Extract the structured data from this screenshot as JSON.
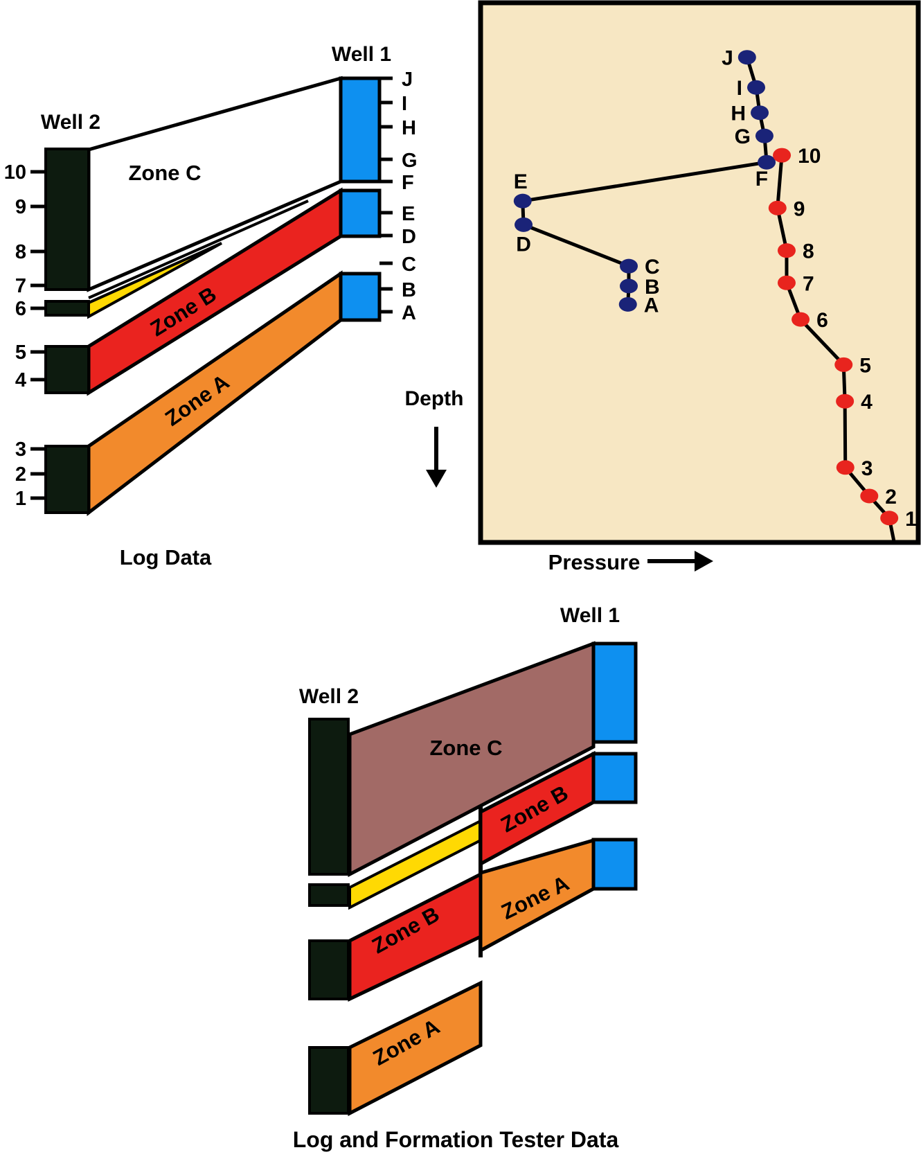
{
  "colors": {
    "plot_background": "#F7E7C3",
    "well1_blue": "#0E90F0",
    "well2_black": "#0D1B0F",
    "zone_a_orange": "#F28A2C",
    "zone_b_red": "#EA231F",
    "zone_c_white": "#FFFFFF",
    "zone_c_mauve": "#A26A66",
    "thin_bed_yellow": "#FFD903",
    "navy_point": "#1A2378",
    "red_point": "#E8241E",
    "ink": "#000000"
  },
  "log_data_panel": {
    "caption": "Log Data",
    "well1": {
      "label": "Well 1",
      "ticks": [
        "J",
        "I",
        "H",
        "G",
        "F",
        "E",
        "D",
        "C",
        "B",
        "A"
      ]
    },
    "well2": {
      "label": "Well 2",
      "ticks": [
        "10",
        "9",
        "8",
        "7",
        "6",
        "5",
        "4",
        "3",
        "2",
        "1"
      ]
    },
    "zone_a_label": "Zone A",
    "zone_b_label": "Zone B",
    "zone_c_label": "Zone C"
  },
  "pressure_plot": {
    "xlabel": "Pressure",
    "ylabel": "Depth"
  },
  "chart_data": {
    "type": "scatter",
    "title": "",
    "xlabel": "Pressure",
    "ylabel": "Depth",
    "x_axis": "pressure, unlabeled scale increasing to the right (0-100 relative)",
    "y_axis": "depth, unlabeled scale increasing downward (0-100 relative)",
    "grid": false,
    "legend": false,
    "series": [
      {
        "name": "Well 1 formation tester points",
        "color": "#1A2378",
        "connected": true,
        "points": [
          {
            "label": "J",
            "pressure": 60.8,
            "depth": 10.0,
            "label_side": "left"
          },
          {
            "label": "I",
            "pressure": 62.9,
            "depth": 15.6,
            "label_side": "left"
          },
          {
            "label": "H",
            "pressure": 63.7,
            "depth": 20.3,
            "label_side": "left"
          },
          {
            "label": "G",
            "pressure": 64.8,
            "depth": 24.6,
            "label_side": "left"
          },
          {
            "label": "F",
            "pressure": 65.3,
            "depth": 29.5,
            "label_side": "below-left"
          },
          {
            "label": "E",
            "pressure": 9.2,
            "depth": 36.7,
            "label_side": "above"
          },
          {
            "label": "D",
            "pressure": 9.4,
            "depth": 41.1,
            "label_side": "below"
          },
          {
            "label": "C",
            "pressure": 33.6,
            "depth": 48.8,
            "label_side": "right"
          },
          {
            "label": "B",
            "pressure": 33.6,
            "depth": 52.5,
            "label_side": "right"
          },
          {
            "label": "A",
            "pressure": 33.4,
            "depth": 55.9,
            "label_side": "right"
          }
        ]
      },
      {
        "name": "Well 2 formation tester points",
        "color": "#E8241E",
        "connected": true,
        "points": [
          {
            "label": "10",
            "pressure": 68.8,
            "depth": 28.2,
            "label_side": "right"
          },
          {
            "label": "9",
            "pressure": 67.8,
            "depth": 38.0,
            "label_side": "right"
          },
          {
            "label": "8",
            "pressure": 69.9,
            "depth": 45.9,
            "label_side": "right"
          },
          {
            "label": "7",
            "pressure": 69.9,
            "depth": 51.9,
            "label_side": "right"
          },
          {
            "label": "6",
            "pressure": 73.1,
            "depth": 58.7,
            "label_side": "right"
          },
          {
            "label": "5",
            "pressure": 83.0,
            "depth": 67.1,
            "label_side": "right"
          },
          {
            "label": "4",
            "pressure": 83.3,
            "depth": 73.9,
            "label_side": "right"
          },
          {
            "label": "3",
            "pressure": 83.4,
            "depth": 86.2,
            "label_side": "right"
          },
          {
            "label": "2",
            "pressure": 88.9,
            "depth": 91.5,
            "label_side": "right"
          },
          {
            "label": "1",
            "pressure": 93.5,
            "depth": 95.6,
            "label_side": "right"
          }
        ],
        "line_extension": {
          "pressure": 94.6,
          "depth": 100
        }
      }
    ]
  },
  "tester_panel": {
    "caption": "Log and Formation Tester Data",
    "well1_label": "Well 1",
    "well2_label": "Well 2",
    "zone_c_label": "Zone C",
    "zone_b_left_label": "Zone B",
    "zone_b_right_label": "Zone B",
    "zone_a_left_label": "Zone A",
    "zone_a_right_label": "Zone A"
  }
}
